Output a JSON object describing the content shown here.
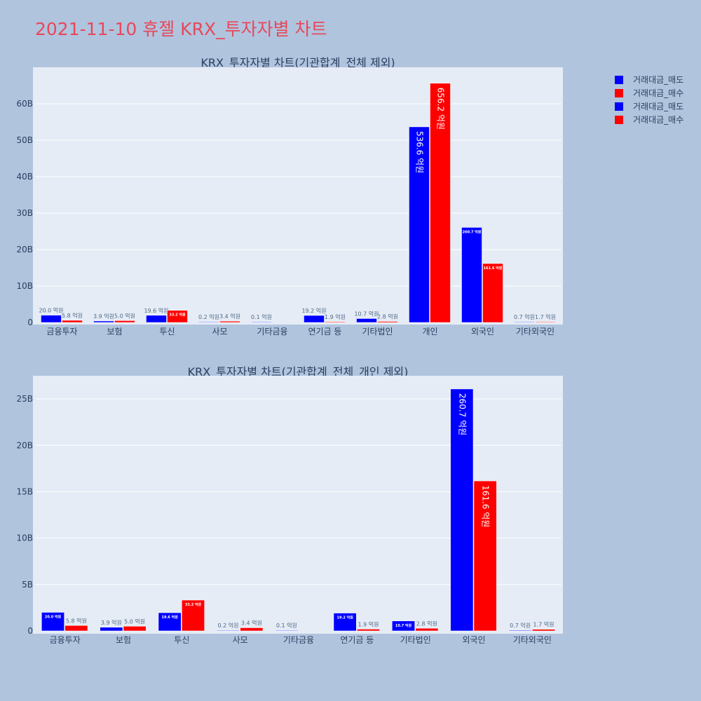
{
  "title": "2021-11-10 휴젤 KRX_투자자별 차트",
  "colors": {
    "sell": "#0000ff",
    "buy": "#ff0000",
    "title": "#e8485a"
  },
  "legend": [
    "거래대금_매도",
    "거래대금_매수",
    "거래대금_매도",
    "거래대금_매수"
  ],
  "chart_data": [
    {
      "type": "bar",
      "title": "KRX_투자자별 차트(기관합계_전체 제외)",
      "categories": [
        "금융투자",
        "보험",
        "투신",
        "사모",
        "기타금융",
        "연기금 등",
        "기타법인",
        "개인",
        "외국인",
        "기타외국인"
      ],
      "ylim": [
        0,
        70
      ],
      "yticks": [
        0,
        10,
        20,
        30,
        40,
        50,
        60
      ],
      "ytick_labels": [
        "0",
        "10B",
        "20B",
        "30B",
        "40B",
        "50B",
        "60B"
      ],
      "grid": true,
      "legend_position": "top-right",
      "series": [
        {
          "name": "거래대금_매도",
          "color": "#0000ff",
          "values": [
            2.0,
            0.39,
            1.96,
            0.02,
            0.01,
            1.92,
            1.07,
            53.66,
            26.07,
            0.07
          ],
          "labels": [
            "20.0 억원",
            "3.9 억원",
            "19.6 억원",
            "0.2 억원",
            "0.1 억원",
            "19.2 억원",
            "10.7 억원",
            "536.6 억원",
            "260.7 억원",
            "0.7 억원"
          ]
        },
        {
          "name": "거래대금_매수",
          "color": "#ff0000",
          "values": [
            0.58,
            0.5,
            3.32,
            0.34,
            null,
            0.19,
            0.28,
            65.62,
            16.16,
            0.17
          ],
          "labels": [
            "5.8 억원",
            "5.0 억원",
            "33.2 억원",
            "3.4 억원",
            "",
            "1.9 억원",
            "2.8 억원",
            "656.2 억원",
            "161.6 억원",
            "1.7 억원"
          ]
        }
      ]
    },
    {
      "type": "bar",
      "title": "KRX_투자자별 차트(기관합계_전체_개인 제외)",
      "categories": [
        "금융투자",
        "보험",
        "투신",
        "사모",
        "기타금융",
        "연기금 등",
        "기타법인",
        "외국인",
        "기타외국인"
      ],
      "ylim": [
        0,
        27.5
      ],
      "yticks": [
        0,
        5,
        10,
        15,
        20,
        25
      ],
      "ytick_labels": [
        "0",
        "5B",
        "10B",
        "15B",
        "20B",
        "25B"
      ],
      "grid": true,
      "series": [
        {
          "name": "거래대금_매도",
          "color": "#0000ff",
          "values": [
            2.0,
            0.39,
            1.96,
            0.02,
            0.01,
            1.92,
            1.07,
            26.07,
            0.07
          ],
          "labels": [
            "20.0 억원",
            "3.9 억원",
            "19.6 억원",
            "0.2 억원",
            "0.1 억원",
            "19.2 억원",
            "10.7 억원",
            "260.7 억원",
            "0.7 억원"
          ]
        },
        {
          "name": "거래대금_매수",
          "color": "#ff0000",
          "values": [
            0.58,
            0.5,
            3.32,
            0.34,
            null,
            0.19,
            0.28,
            16.16,
            0.17
          ],
          "labels": [
            "5.8 억원",
            "5.0 억원",
            "33.2 억원",
            "3.4 억원",
            "",
            "1.9 억원",
            "2.8 억원",
            "161.6 억원",
            "1.7 억원"
          ]
        }
      ]
    }
  ]
}
